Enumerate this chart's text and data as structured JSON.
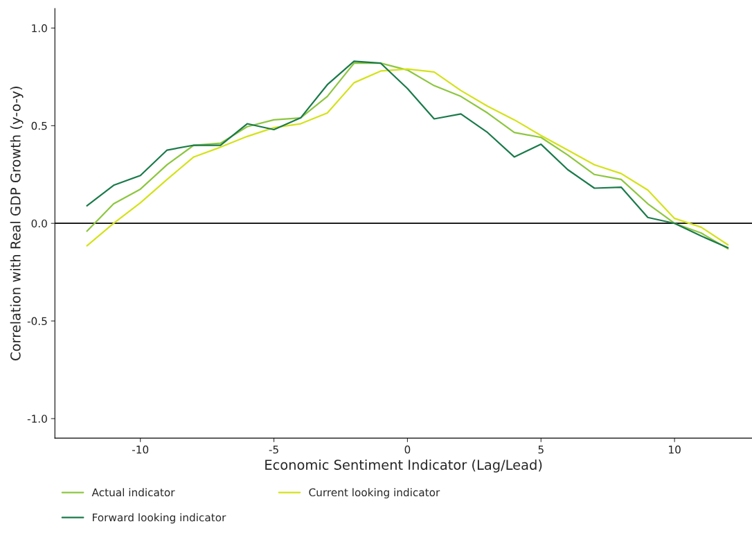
{
  "chart_data": {
    "type": "line",
    "xlabel": "Economic Sentiment Indicator (Lag/Lead)",
    "ylabel": "Correlation with Real GDP Growth (y-o-y)",
    "x": [
      -12,
      -11,
      -10,
      -9,
      -8,
      -7,
      -6,
      -5,
      -4,
      -3,
      -2,
      -1,
      0,
      1,
      2,
      3,
      4,
      5,
      6,
      7,
      8,
      9,
      10,
      11,
      12
    ],
    "series": [
      {
        "name": "Actual indicator",
        "color": "#8dc63f",
        "values": [
          -0.04,
          0.1,
          0.175,
          0.3,
          0.4,
          0.41,
          0.495,
          0.53,
          0.54,
          0.65,
          0.82,
          0.82,
          0.785,
          0.705,
          0.65,
          0.565,
          0.465,
          0.44,
          0.35,
          0.25,
          0.225,
          0.1,
          0.0,
          -0.05,
          -0.13
        ]
      },
      {
        "name": "Current looking indicator",
        "color": "#d4e21a",
        "values": [
          -0.115,
          0.0,
          0.105,
          0.225,
          0.34,
          0.39,
          0.445,
          0.49,
          0.51,
          0.565,
          0.72,
          0.78,
          0.79,
          0.775,
          0.68,
          0.6,
          0.53,
          0.45,
          0.375,
          0.3,
          0.255,
          0.17,
          0.025,
          -0.02,
          -0.11
        ]
      },
      {
        "name": "Forward looking indicator",
        "color": "#1a7a4a",
        "values": [
          0.09,
          0.195,
          0.245,
          0.375,
          0.4,
          0.4,
          0.51,
          0.48,
          0.54,
          0.71,
          0.83,
          0.82,
          0.69,
          0.535,
          0.56,
          0.465,
          0.34,
          0.405,
          0.275,
          0.18,
          0.185,
          0.03,
          0.0,
          -0.065,
          -0.125
        ]
      }
    ],
    "xlim": [
      -13.2,
      12.9
    ],
    "ylim": [
      -1.1,
      1.1
    ],
    "xticks": [
      -10,
      -5,
      0,
      5,
      10
    ],
    "yticks": [
      {
        "value": -1.0,
        "label": "-1.0"
      },
      {
        "value": -0.5,
        "label": "-0.5"
      },
      {
        "value": 0.0,
        "label": "0.0"
      },
      {
        "value": 0.5,
        "label": "0.5"
      },
      {
        "value": 1.0,
        "label": "1.0"
      }
    ],
    "ref_lines": [
      {
        "axis": "y",
        "value": 0,
        "color": "#000000"
      }
    ],
    "grid": false,
    "legend": "bottom",
    "marker": "none",
    "line_style": "solid"
  }
}
